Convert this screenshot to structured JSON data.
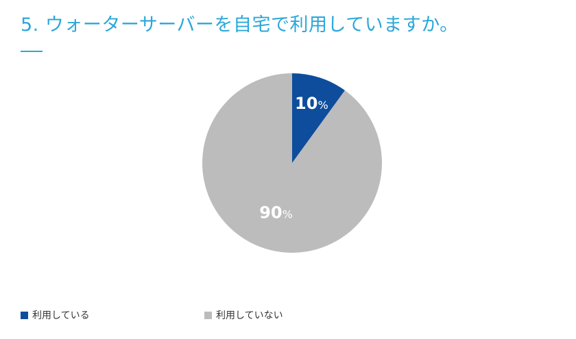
{
  "question": "5. ウォーターサーバーを自宅で利用していますか。",
  "chart_data": {
    "type": "pie",
    "categories": [
      "利用している",
      "利用していない"
    ],
    "values": [
      10,
      90
    ],
    "value_suffix": "%",
    "colors": [
      "#0e4d9c",
      "#bcbcbc"
    ],
    "start": "top",
    "direction": "clockwise",
    "legend_position": "bottom"
  },
  "legend": {
    "items": [
      {
        "label": "利用している",
        "color": "#0e4d9c"
      },
      {
        "label": "利用していない",
        "color": "#bcbcbc"
      }
    ]
  }
}
